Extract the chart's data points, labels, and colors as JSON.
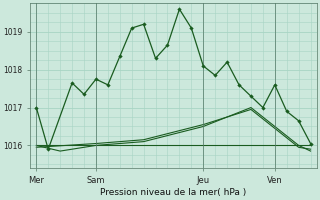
{
  "background_color": "#cce8dc",
  "grid_color": "#a8d4c4",
  "line_color": "#1a5c20",
  "title": "Pression niveau de la mer( hPa )",
  "ylabel_ticks": [
    1016,
    1017,
    1018,
    1019
  ],
  "ylim": [
    1015.4,
    1019.75
  ],
  "xlim": [
    -0.5,
    23.5
  ],
  "day_labels": [
    "Mer",
    "Sam",
    "Jeu",
    "Ven"
  ],
  "day_positions": [
    0,
    5,
    14,
    20
  ],
  "series1_x": [
    0,
    1,
    3,
    4,
    5,
    6,
    7,
    8,
    9,
    10,
    11,
    12,
    13,
    14,
    15,
    16,
    17,
    18,
    19,
    20,
    21,
    22,
    23
  ],
  "series1_y": [
    1017.0,
    1015.9,
    1017.65,
    1017.35,
    1017.75,
    1017.6,
    1018.35,
    1019.1,
    1019.2,
    1018.3,
    1018.65,
    1019.6,
    1019.1,
    1018.1,
    1017.85,
    1018.2,
    1017.6,
    1017.3,
    1017.0,
    1017.6,
    1016.9,
    1016.65,
    1016.05
  ],
  "series2_x": [
    0,
    2,
    5,
    9,
    14,
    18,
    22,
    23
  ],
  "series2_y": [
    1016.0,
    1015.85,
    1016.0,
    1016.1,
    1016.5,
    1017.0,
    1016.0,
    1015.85
  ],
  "series3_x": [
    0,
    5,
    9,
    14,
    18,
    22,
    23
  ],
  "series3_y": [
    1015.95,
    1016.05,
    1016.15,
    1016.55,
    1016.95,
    1015.95,
    1015.9
  ],
  "series4_x": [
    0,
    23
  ],
  "series4_y": [
    1016.0,
    1016.0
  ],
  "figsize": [
    3.2,
    2.0
  ],
  "dpi": 100
}
